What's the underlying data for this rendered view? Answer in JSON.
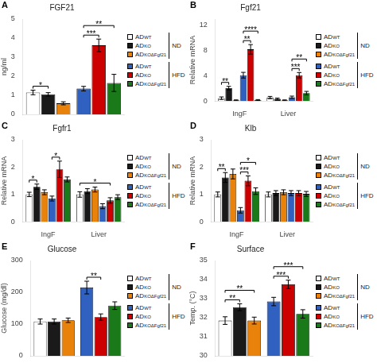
{
  "chart_data": [
    {
      "type": "bar",
      "panel": "A",
      "title": "FGF21",
      "ylabel": "ng/ml",
      "categories": [
        null,
        null
      ],
      "series": [
        {
          "name": "ADWT",
          "group": "ND",
          "color": "#FFFFFF",
          "values": [
            1.15,
            null
          ],
          "errors": [
            0.12,
            null
          ]
        },
        {
          "name": "ADKO",
          "group": "ND",
          "color": "#1a1a1a",
          "values": [
            1.05,
            null
          ],
          "errors": [
            0.09,
            null
          ]
        },
        {
          "name": "ADKOΔFgf21",
          "group": "ND",
          "color": "#E8820A",
          "values": [
            0.58,
            null
          ],
          "errors": [
            0.08,
            null
          ]
        },
        {
          "name": "ADWT",
          "group": "HFD",
          "color": "#3060C0",
          "values": [
            null,
            1.35
          ],
          "errors": [
            null,
            0.12
          ]
        },
        {
          "name": "ADKO",
          "group": "HFD",
          "color": "#CC0000",
          "values": [
            null,
            3.62
          ],
          "errors": [
            null,
            0.33
          ]
        },
        {
          "name": "ADKOΔFgf21",
          "group": "HFD",
          "color": "#1A7A1A",
          "values": [
            null,
            1.65
          ],
          "errors": [
            null,
            0.45
          ]
        }
      ],
      "ylim": [
        0,
        5
      ],
      "yticks": [
        0,
        1,
        2,
        3,
        4,
        5
      ],
      "grid": false,
      "legend": "right",
      "tick_labels": "y",
      "annotations": [
        {
          "text": "*",
          "category": 0,
          "series": [
            0,
            1
          ]
        },
        {
          "text": "***",
          "category": 1,
          "series": [
            3,
            4
          ]
        },
        {
          "text": "**",
          "category": 1,
          "series": [
            3,
            5
          ]
        }
      ]
    },
    {
      "type": "bar",
      "panel": "B",
      "title": "Fgf21",
      "ylabel": "Relative mRNA",
      "categories": [
        "IngF",
        "Liver"
      ],
      "series": [
        {
          "name": "ADWT",
          "group": "ND",
          "color": "#FFFFFF",
          "values": [
            0.45,
            0.55
          ],
          "errors": [
            0.2,
            0.18
          ]
        },
        {
          "name": "ADKO",
          "group": "ND",
          "color": "#1a1a1a",
          "values": [
            2.05,
            0.35
          ],
          "errors": [
            0.28,
            0.12
          ]
        },
        {
          "name": "ADKOΔFgf21",
          "group": "ND",
          "color": "#E8820A",
          "values": [
            0.12,
            0.12
          ],
          "errors": [
            0.06,
            0.06
          ]
        },
        {
          "name": "ADWT",
          "group": "HFD",
          "color": "#3060C0",
          "values": [
            4.1,
            0.6
          ],
          "errors": [
            0.45,
            0.18
          ]
        },
        {
          "name": "ADKO",
          "group": "HFD",
          "color": "#CC0000",
          "values": [
            8.2,
            4.1
          ],
          "errors": [
            0.75,
            0.42
          ]
        },
        {
          "name": "ADKOΔFgf21",
          "group": "HFD",
          "color": "#1A7A1A",
          "values": [
            0.15,
            1.25
          ],
          "errors": [
            0.08,
            0.28
          ]
        }
      ],
      "ylim": [
        0,
        13
      ],
      "yticks": [
        0,
        4,
        8,
        12
      ],
      "grid": false,
      "legend": "right",
      "annotations": [
        {
          "text": "**",
          "category": 0,
          "series": [
            0,
            1
          ]
        },
        {
          "text": "**",
          "category": 0,
          "series": [
            3,
            4
          ]
        },
        {
          "text": "****",
          "category": 0,
          "series": [
            3,
            5
          ]
        },
        {
          "text": "***",
          "category": 1,
          "series": [
            3,
            4
          ]
        },
        {
          "text": "**",
          "category": 1,
          "series": [
            3,
            5
          ]
        }
      ]
    },
    {
      "type": "bar",
      "panel": "C",
      "title": "Fgfr1",
      "ylabel": "Relative mRNA",
      "categories": [
        "IngF",
        "Liver"
      ],
      "series": [
        {
          "name": "ADWT",
          "group": "ND",
          "color": "#FFFFFF",
          "values": [
            1.0,
            1.0
          ],
          "errors": [
            0.08,
            0.1
          ]
        },
        {
          "name": "ADKO",
          "group": "ND",
          "color": "#1a1a1a",
          "values": [
            1.28,
            1.12
          ],
          "errors": [
            0.1,
            0.09
          ]
        },
        {
          "name": "ADKOΔFgf21",
          "group": "ND",
          "color": "#E8820A",
          "values": [
            1.08,
            1.18
          ],
          "errors": [
            0.09,
            0.09
          ]
        },
        {
          "name": "ADWT",
          "group": "HFD",
          "color": "#3060C0",
          "values": [
            0.85,
            0.57
          ],
          "errors": [
            0.09,
            0.09
          ]
        },
        {
          "name": "ADKO",
          "group": "HFD",
          "color": "#CC0000",
          "values": [
            1.92,
            0.78
          ],
          "errors": [
            0.3,
            0.1
          ]
        },
        {
          "name": "ADKOΔFgf21",
          "group": "HFD",
          "color": "#1A7A1A",
          "values": [
            1.55,
            0.9
          ],
          "errors": [
            0.09,
            0.09
          ]
        }
      ],
      "ylim": [
        0,
        3
      ],
      "yticks": [
        0,
        1,
        2,
        3
      ],
      "grid": false,
      "legend": "right",
      "annotations": [
        {
          "text": "*",
          "category": 0,
          "series": [
            0,
            1
          ]
        },
        {
          "text": "*",
          "category": 0,
          "series": [
            3,
            4
          ]
        },
        {
          "text": "*",
          "category": 1,
          "series": [
            0,
            4
          ]
        }
      ]
    },
    {
      "type": "bar",
      "panel": "D",
      "title": "Klb",
      "ylabel": "Relative mRNA",
      "categories": [
        "IngF",
        "Liver"
      ],
      "series": [
        {
          "name": "ADWT",
          "group": "ND",
          "color": "#FFFFFF",
          "values": [
            1.0,
            1.0
          ],
          "errors": [
            0.09,
            0.09
          ]
        },
        {
          "name": "ADKO",
          "group": "ND",
          "color": "#1a1a1a",
          "values": [
            1.62,
            1.05
          ],
          "errors": [
            0.18,
            0.09
          ]
        },
        {
          "name": "ADKOΔFgf21",
          "group": "ND",
          "color": "#E8820A",
          "values": [
            1.75,
            1.08
          ],
          "errors": [
            0.18,
            0.09
          ]
        },
        {
          "name": "ADWT",
          "group": "HFD",
          "color": "#3060C0",
          "values": [
            0.42,
            1.05
          ],
          "errors": [
            0.1,
            0.09
          ]
        },
        {
          "name": "ADKO",
          "group": "HFD",
          "color": "#CC0000",
          "values": [
            1.5,
            1.05
          ],
          "errors": [
            0.18,
            0.09
          ]
        },
        {
          "name": "ADKOΔFgf21",
          "group": "HFD",
          "color": "#1A7A1A",
          "values": [
            1.12,
            1.02
          ],
          "errors": [
            0.12,
            0.09
          ]
        }
      ],
      "ylim": [
        0,
        3
      ],
      "yticks": [
        0,
        1,
        2,
        3
      ],
      "grid": false,
      "legend": "right",
      "annotations": [
        {
          "text": "**",
          "category": 0,
          "series": [
            0,
            1
          ]
        },
        {
          "text": "***",
          "category": 0,
          "series": [
            3,
            4
          ]
        },
        {
          "text": "*",
          "category": 0,
          "series": [
            3,
            5
          ]
        }
      ]
    },
    {
      "type": "bar",
      "panel": "E",
      "title": "Glucose",
      "ylabel": "Glucose (mg/dl)",
      "categories": [
        null,
        null
      ],
      "series": [
        {
          "name": "ADWT",
          "group": "ND",
          "color": "#FFFFFF",
          "values": [
            108,
            null
          ],
          "errors": [
            8,
            null
          ]
        },
        {
          "name": "ADKO",
          "group": "ND",
          "color": "#1a1a1a",
          "values": [
            108,
            null
          ],
          "errors": [
            8,
            null
          ]
        },
        {
          "name": "ADKOΔFgf21",
          "group": "ND",
          "color": "#E8820A",
          "values": [
            112,
            null
          ],
          "errors": [
            7,
            null
          ]
        },
        {
          "name": "ADWT",
          "group": "HFD",
          "color": "#3060C0",
          "values": [
            null,
            215
          ],
          "errors": [
            null,
            20
          ]
        },
        {
          "name": "ADKO",
          "group": "HFD",
          "color": "#CC0000",
          "values": [
            null,
            122
          ],
          "errors": [
            null,
            10
          ]
        },
        {
          "name": "ADKOΔFgf21",
          "group": "HFD",
          "color": "#1A7A1A",
          "values": [
            null,
            158
          ],
          "errors": [
            null,
            12
          ]
        }
      ],
      "ylim": [
        0,
        300
      ],
      "yticks": [
        0,
        100,
        200,
        300
      ],
      "grid": false,
      "legend": "right",
      "tick_labels": "y",
      "annotations": [
        {
          "text": "**",
          "category": 1,
          "series": [
            3,
            4
          ]
        }
      ]
    },
    {
      "type": "bar",
      "panel": "F",
      "title": "Surface",
      "ylabel": "Temp. (°C)",
      "categories": [
        null,
        null
      ],
      "series": [
        {
          "name": "ADWT",
          "group": "ND",
          "color": "#FFFFFF",
          "values": [
            31.85,
            null
          ],
          "errors": [
            0.2,
            null
          ]
        },
        {
          "name": "ADKO",
          "group": "ND",
          "color": "#1a1a1a",
          "values": [
            32.55,
            null
          ],
          "errors": [
            0.18,
            null
          ]
        },
        {
          "name": "ADKOΔFgf21",
          "group": "ND",
          "color": "#E8820A",
          "values": [
            31.85,
            null
          ],
          "errors": [
            0.18,
            null
          ]
        },
        {
          "name": "ADWT",
          "group": "HFD",
          "color": "#3060C0",
          "values": [
            null,
            32.85
          ],
          "errors": [
            null,
            0.22
          ]
        },
        {
          "name": "ADKO",
          "group": "HFD",
          "color": "#CC0000",
          "values": [
            null,
            33.75
          ],
          "errors": [
            null,
            0.22
          ]
        },
        {
          "name": "ADKOΔFgf21",
          "group": "HFD",
          "color": "#1A7A1A",
          "values": [
            null,
            32.2
          ],
          "errors": [
            null,
            0.22
          ]
        }
      ],
      "ylim": [
        30,
        35
      ],
      "yticks": [
        30,
        31,
        32,
        33,
        34,
        35
      ],
      "grid": false,
      "legend": "right",
      "tick_labels": "y",
      "annotations": [
        {
          "text": "**",
          "category": 0,
          "series": [
            0,
            1
          ]
        },
        {
          "text": "**",
          "category": 0,
          "series": [
            0,
            2
          ]
        },
        {
          "text": "***",
          "category": 1,
          "series": [
            3,
            4
          ]
        },
        {
          "text": "***",
          "category": 1,
          "series": [
            3,
            5
          ]
        }
      ]
    }
  ]
}
